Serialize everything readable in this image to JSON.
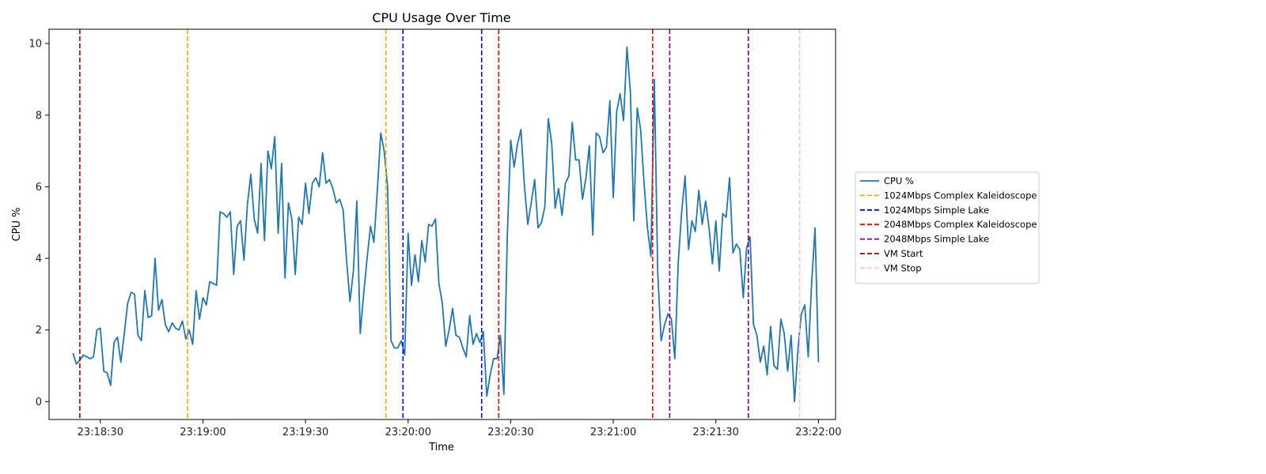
{
  "chart_data": {
    "type": "line",
    "title": "CPU Usage Over Time",
    "xlabel": "Time",
    "ylabel": "CPU %",
    "xlim": [
      "23:18:15",
      "23:22:05"
    ],
    "ylim": [
      -0.5,
      10.4
    ],
    "x_ticks": [
      "23:18:30",
      "23:19:00",
      "23:19:30",
      "23:20:00",
      "23:20:30",
      "23:21:00",
      "23:21:30",
      "23:22:00"
    ],
    "y_ticks": [
      0,
      2,
      4,
      6,
      8,
      10
    ],
    "grid": false,
    "legend_position": "right",
    "series": [
      {
        "name": "CPU %",
        "color": "#1f77b4",
        "x_start": "23:18:22",
        "x_step_seconds": 1,
        "values": [
          1.35,
          1.05,
          1.15,
          1.3,
          1.25,
          1.2,
          1.25,
          2.0,
          2.05,
          0.85,
          0.8,
          0.45,
          1.65,
          1.8,
          1.1,
          1.9,
          2.75,
          3.05,
          3.0,
          1.85,
          1.7,
          3.1,
          2.35,
          2.4,
          4.0,
          2.55,
          2.85,
          2.15,
          1.95,
          2.2,
          2.05,
          2.0,
          2.25,
          1.75,
          2.0,
          1.6,
          3.1,
          2.3,
          2.9,
          2.7,
          3.35,
          3.3,
          3.25,
          5.3,
          5.25,
          5.15,
          5.3,
          3.55,
          4.9,
          5.05,
          3.95,
          5.5,
          6.35,
          5.1,
          4.7,
          6.65,
          4.5,
          7.0,
          6.5,
          7.4,
          4.7,
          6.65,
          3.45,
          5.55,
          5.1,
          3.55,
          5.15,
          4.95,
          6.1,
          5.25,
          6.1,
          6.25,
          6.0,
          6.95,
          6.1,
          6.2,
          5.95,
          5.55,
          5.65,
          5.35,
          3.95,
          2.8,
          3.65,
          5.6,
          1.9,
          3.0,
          4.0,
          4.9,
          4.45,
          5.9,
          7.5,
          7.0,
          6.0,
          1.7,
          1.5,
          1.5,
          1.7,
          1.3,
          4.7,
          3.25,
          4.1,
          3.35,
          4.5,
          3.9,
          4.95,
          4.9,
          5.1,
          3.3,
          2.75,
          1.55,
          2.0,
          2.6,
          1.85,
          1.8,
          1.5,
          1.25,
          2.4,
          1.6,
          1.9,
          1.65,
          1.95,
          0.15,
          0.75,
          1.2,
          1.2,
          1.85,
          0.2,
          4.6,
          7.3,
          6.55,
          7.2,
          7.6,
          6.05,
          4.95,
          5.55,
          6.2,
          4.85,
          5.0,
          5.45,
          7.9,
          7.2,
          5.4,
          5.95,
          5.2,
          6.1,
          6.3,
          7.8,
          6.75,
          6.75,
          5.65,
          6.25,
          7.15,
          4.65,
          7.5,
          7.4,
          6.95,
          7.1,
          8.4,
          5.7,
          8.1,
          8.6,
          7.85,
          9.9,
          8.65,
          5.05,
          8.2,
          7.6,
          6.1,
          4.85,
          4.05,
          9.0,
          3.6,
          1.7,
          2.15,
          2.45,
          2.3,
          1.2,
          3.9,
          5.3,
          6.3,
          4.25,
          5.05,
          4.75,
          5.9,
          4.95,
          5.6,
          4.85,
          3.85,
          5.05,
          3.65,
          5.25,
          5.15,
          6.25,
          4.15,
          4.4,
          4.25,
          2.9,
          4.3,
          4.6,
          2.15,
          1.85,
          1.1,
          1.55,
          0.75,
          2.1,
          1.0,
          0.9,
          2.3,
          1.9,
          0.85,
          1.85,
          0.0,
          1.45,
          2.45,
          2.7,
          1.25,
          3.3,
          4.85,
          1.1
        ]
      }
    ],
    "events": [
      {
        "name": "VM Start",
        "time": "23:18:24",
        "color": "#a50000"
      },
      {
        "name": "1024Mbps Complex Kaleidoscope",
        "time": "23:18:55.5",
        "color": "#ffa500"
      },
      {
        "name": "1024Mbps Complex Kaleidoscope",
        "time": "23:19:53.5",
        "color": "#ffa500"
      },
      {
        "name": "1024Mbps Simple Lake",
        "time": "23:19:58.5",
        "color": "#0000ff"
      },
      {
        "name": "1024Mbps Simple Lake",
        "time": "23:20:21.5",
        "color": "#0000ff"
      },
      {
        "name": "2048Mbps Complex Kaleidoscope",
        "time": "23:20:26.5",
        "color": "#ff0000"
      },
      {
        "name": "2048Mbps Complex Kaleidoscope",
        "time": "23:21:11.5",
        "color": "#ff0000"
      },
      {
        "name": "2048Mbps Simple Lake",
        "time": "23:21:16.5",
        "color": "#800080"
      },
      {
        "name": "2048Mbps Simple Lake",
        "time": "23:21:39.5",
        "color": "#800080"
      },
      {
        "name": "VM Stop",
        "time": "23:21:54.5",
        "color": "#ffc0cb"
      }
    ],
    "legend": [
      {
        "label": "CPU %",
        "color": "#1f77b4",
        "style": "solid"
      },
      {
        "label": "1024Mbps Complex Kaleidoscope",
        "color": "#ffa500",
        "style": "dashed"
      },
      {
        "label": "1024Mbps Simple Lake",
        "color": "#0000ff",
        "style": "dashed"
      },
      {
        "label": "2048Mbps Complex Kaleidoscope",
        "color": "#ff0000",
        "style": "dashed"
      },
      {
        "label": "2048Mbps Simple Lake",
        "color": "#800080",
        "style": "dashed"
      },
      {
        "label": "VM Start",
        "color": "#a50000",
        "style": "dashed"
      },
      {
        "label": "VM Stop",
        "color": "#ffc0cb",
        "style": "dashed"
      }
    ]
  }
}
